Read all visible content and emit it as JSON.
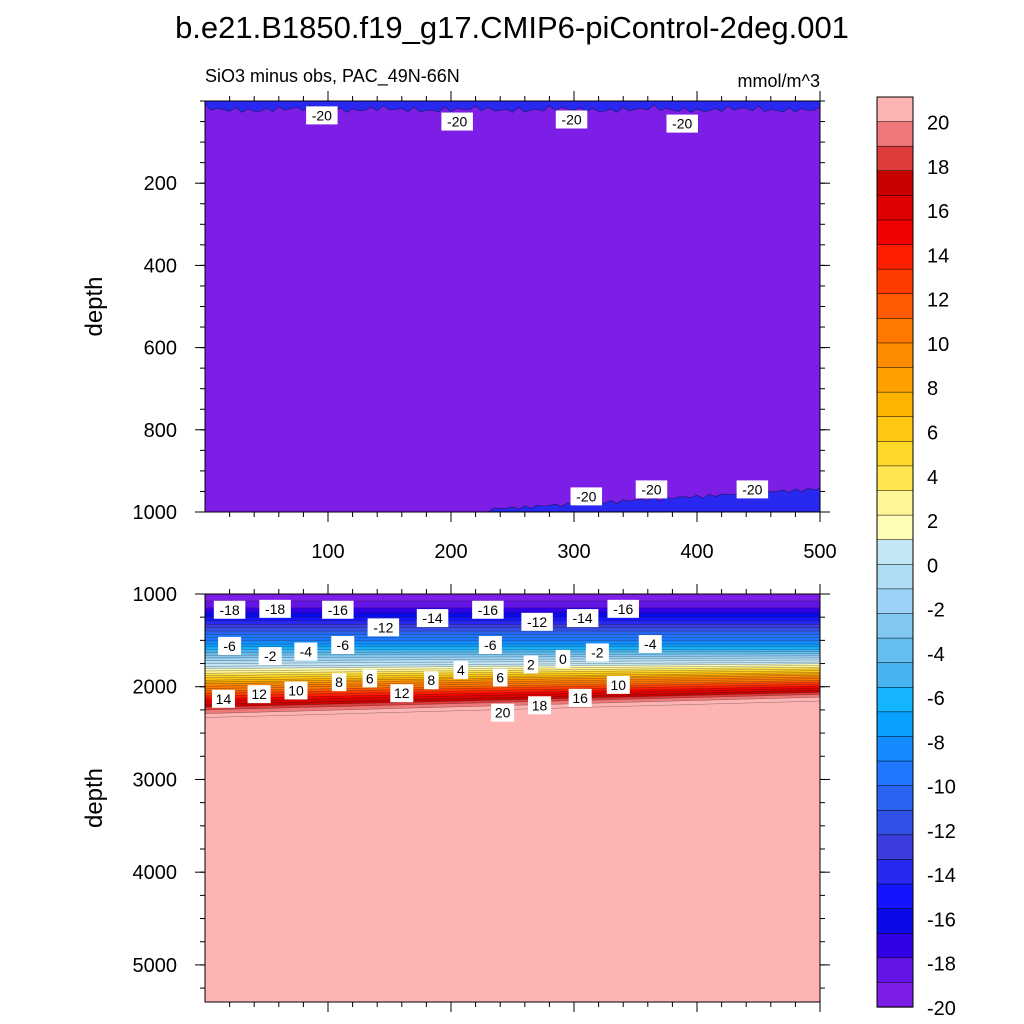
{
  "title": "b.e21.B1850.f19_g17.CMIP6-piControl-2deg.001",
  "subtitle_left": "SiO3 minus obs, PAC_49N-66N",
  "units": "mmol/m^3",
  "colorbar": {
    "levels": [
      -20,
      -18,
      -16,
      -14,
      -12,
      -10,
      -8,
      -6,
      -4,
      -2,
      0,
      2,
      4,
      6,
      8,
      10,
      12,
      14,
      16,
      18,
      20
    ],
    "labels": [
      "20",
      "18",
      "16",
      "14",
      "12",
      "10",
      "8",
      "6",
      "4",
      "2",
      "0",
      "-2",
      "-4",
      "-6",
      "-8",
      "-10",
      "-12",
      "-14",
      "-16",
      "-18",
      "-20"
    ],
    "colors": [
      "#ffb4b4",
      "#f07878",
      "#dc3c3c",
      "#c80000",
      "#dc0000",
      "#f00000",
      "#ff1e00",
      "#ff3c00",
      "#ff5a00",
      "#ff7800",
      "#ff8c00",
      "#ffa000",
      "#ffb400",
      "#ffc814",
      "#ffd728",
      "#ffe650",
      "#fff596",
      "#fffcb4",
      "#c3e6f5",
      "#afdcf5",
      "#9bd2f5",
      "#82c8f0",
      "#64bef0",
      "#46b4f0",
      "#14b4ff",
      "#0aa0ff",
      "#148cff",
      "#1e78ff",
      "#2864f0",
      "#3250e6",
      "#3c3cdc",
      "#2828f0",
      "#1414ff",
      "#0a0ae6",
      "#3200e6",
      "#6414e6",
      "#7d1ee6"
    ]
  },
  "chart_data": [
    {
      "type": "heatmap",
      "panel": "upper",
      "ylabel": "depth",
      "xlim": [
        0,
        500
      ],
      "ylim": [
        1000,
        0
      ],
      "x_ticks": [
        100,
        200,
        300,
        400,
        500
      ],
      "y_ticks": [
        200,
        400,
        600,
        800,
        1000
      ],
      "fill_value": -20,
      "contour_labels": [
        {
          "text": "-20",
          "x": 95,
          "y": 35
        },
        {
          "text": "-20",
          "x": 205,
          "y": 50
        },
        {
          "text": "-20",
          "x": 298,
          "y": 45
        },
        {
          "text": "-20",
          "x": 388,
          "y": 55
        },
        {
          "text": "-20",
          "x": 310,
          "y": 962
        },
        {
          "text": "-20",
          "x": 363,
          "y": 945
        },
        {
          "text": "-20",
          "x": 445,
          "y": 945
        }
      ]
    },
    {
      "type": "heatmap",
      "panel": "lower",
      "ylabel": "depth",
      "xlim": [
        0,
        500
      ],
      "ylim": [
        5400,
        1000
      ],
      "x_ticks": [
        100,
        200,
        300,
        400,
        500
      ],
      "y_ticks": [
        1000,
        2000,
        3000,
        4000,
        5000
      ],
      "depth_of_value": [
        {
          "value": -20,
          "depth": 1000
        },
        {
          "value": -18,
          "depth": 1150
        },
        {
          "value": -16,
          "depth": 1250
        },
        {
          "value": -14,
          "depth": 1330
        },
        {
          "value": -12,
          "depth": 1400
        },
        {
          "value": -10,
          "depth": 1470
        },
        {
          "value": -8,
          "depth": 1540
        },
        {
          "value": -6,
          "depth": 1600
        },
        {
          "value": -4,
          "depth": 1660
        },
        {
          "value": -2,
          "depth": 1720
        },
        {
          "value": 0,
          "depth": 1780
        },
        {
          "value": 2,
          "depth": 1830
        },
        {
          "value": 4,
          "depth": 1880
        },
        {
          "value": 6,
          "depth": 1930
        },
        {
          "value": 8,
          "depth": 1970
        },
        {
          "value": 10,
          "depth": 2020
        },
        {
          "value": 12,
          "depth": 2070
        },
        {
          "value": 14,
          "depth": 2130
        },
        {
          "value": 16,
          "depth": 2190
        },
        {
          "value": 18,
          "depth": 2250
        },
        {
          "value": 20,
          "depth": 2330
        }
      ],
      "deep_fill_value": 20,
      "contour_labels": [
        {
          "text": "-18",
          "x": 20,
          "y": 1170
        },
        {
          "text": "-18",
          "x": 57,
          "y": 1160
        },
        {
          "text": "-16",
          "x": 108,
          "y": 1170
        },
        {
          "text": "-12",
          "x": 145,
          "y": 1360
        },
        {
          "text": "-14",
          "x": 185,
          "y": 1260
        },
        {
          "text": "-16",
          "x": 230,
          "y": 1170
        },
        {
          "text": "-12",
          "x": 270,
          "y": 1300
        },
        {
          "text": "-14",
          "x": 307,
          "y": 1260
        },
        {
          "text": "-16",
          "x": 340,
          "y": 1160
        },
        {
          "text": "-6",
          "x": 20,
          "y": 1560
        },
        {
          "text": "-2",
          "x": 53,
          "y": 1670
        },
        {
          "text": "-4",
          "x": 82,
          "y": 1620
        },
        {
          "text": "-6",
          "x": 112,
          "y": 1550
        },
        {
          "text": "-6",
          "x": 232,
          "y": 1550
        },
        {
          "text": "2",
          "x": 265,
          "y": 1760
        },
        {
          "text": "0",
          "x": 291,
          "y": 1700
        },
        {
          "text": "-2",
          "x": 319,
          "y": 1630
        },
        {
          "text": "-4",
          "x": 362,
          "y": 1540
        },
        {
          "text": "8",
          "x": 109,
          "y": 1950
        },
        {
          "text": "6",
          "x": 134,
          "y": 1910
        },
        {
          "text": "12",
          "x": 160,
          "y": 2070
        },
        {
          "text": "8",
          "x": 184,
          "y": 1930
        },
        {
          "text": "4",
          "x": 208,
          "y": 1820
        },
        {
          "text": "6",
          "x": 240,
          "y": 1900
        },
        {
          "text": "14",
          "x": 15,
          "y": 2130
        },
        {
          "text": "12",
          "x": 44,
          "y": 2080
        },
        {
          "text": "10",
          "x": 74,
          "y": 2040
        },
        {
          "text": "20",
          "x": 242,
          "y": 2280
        },
        {
          "text": "18",
          "x": 272,
          "y": 2200
        },
        {
          "text": "16",
          "x": 305,
          "y": 2120
        },
        {
          "text": "10",
          "x": 336,
          "y": 1980
        }
      ]
    }
  ]
}
